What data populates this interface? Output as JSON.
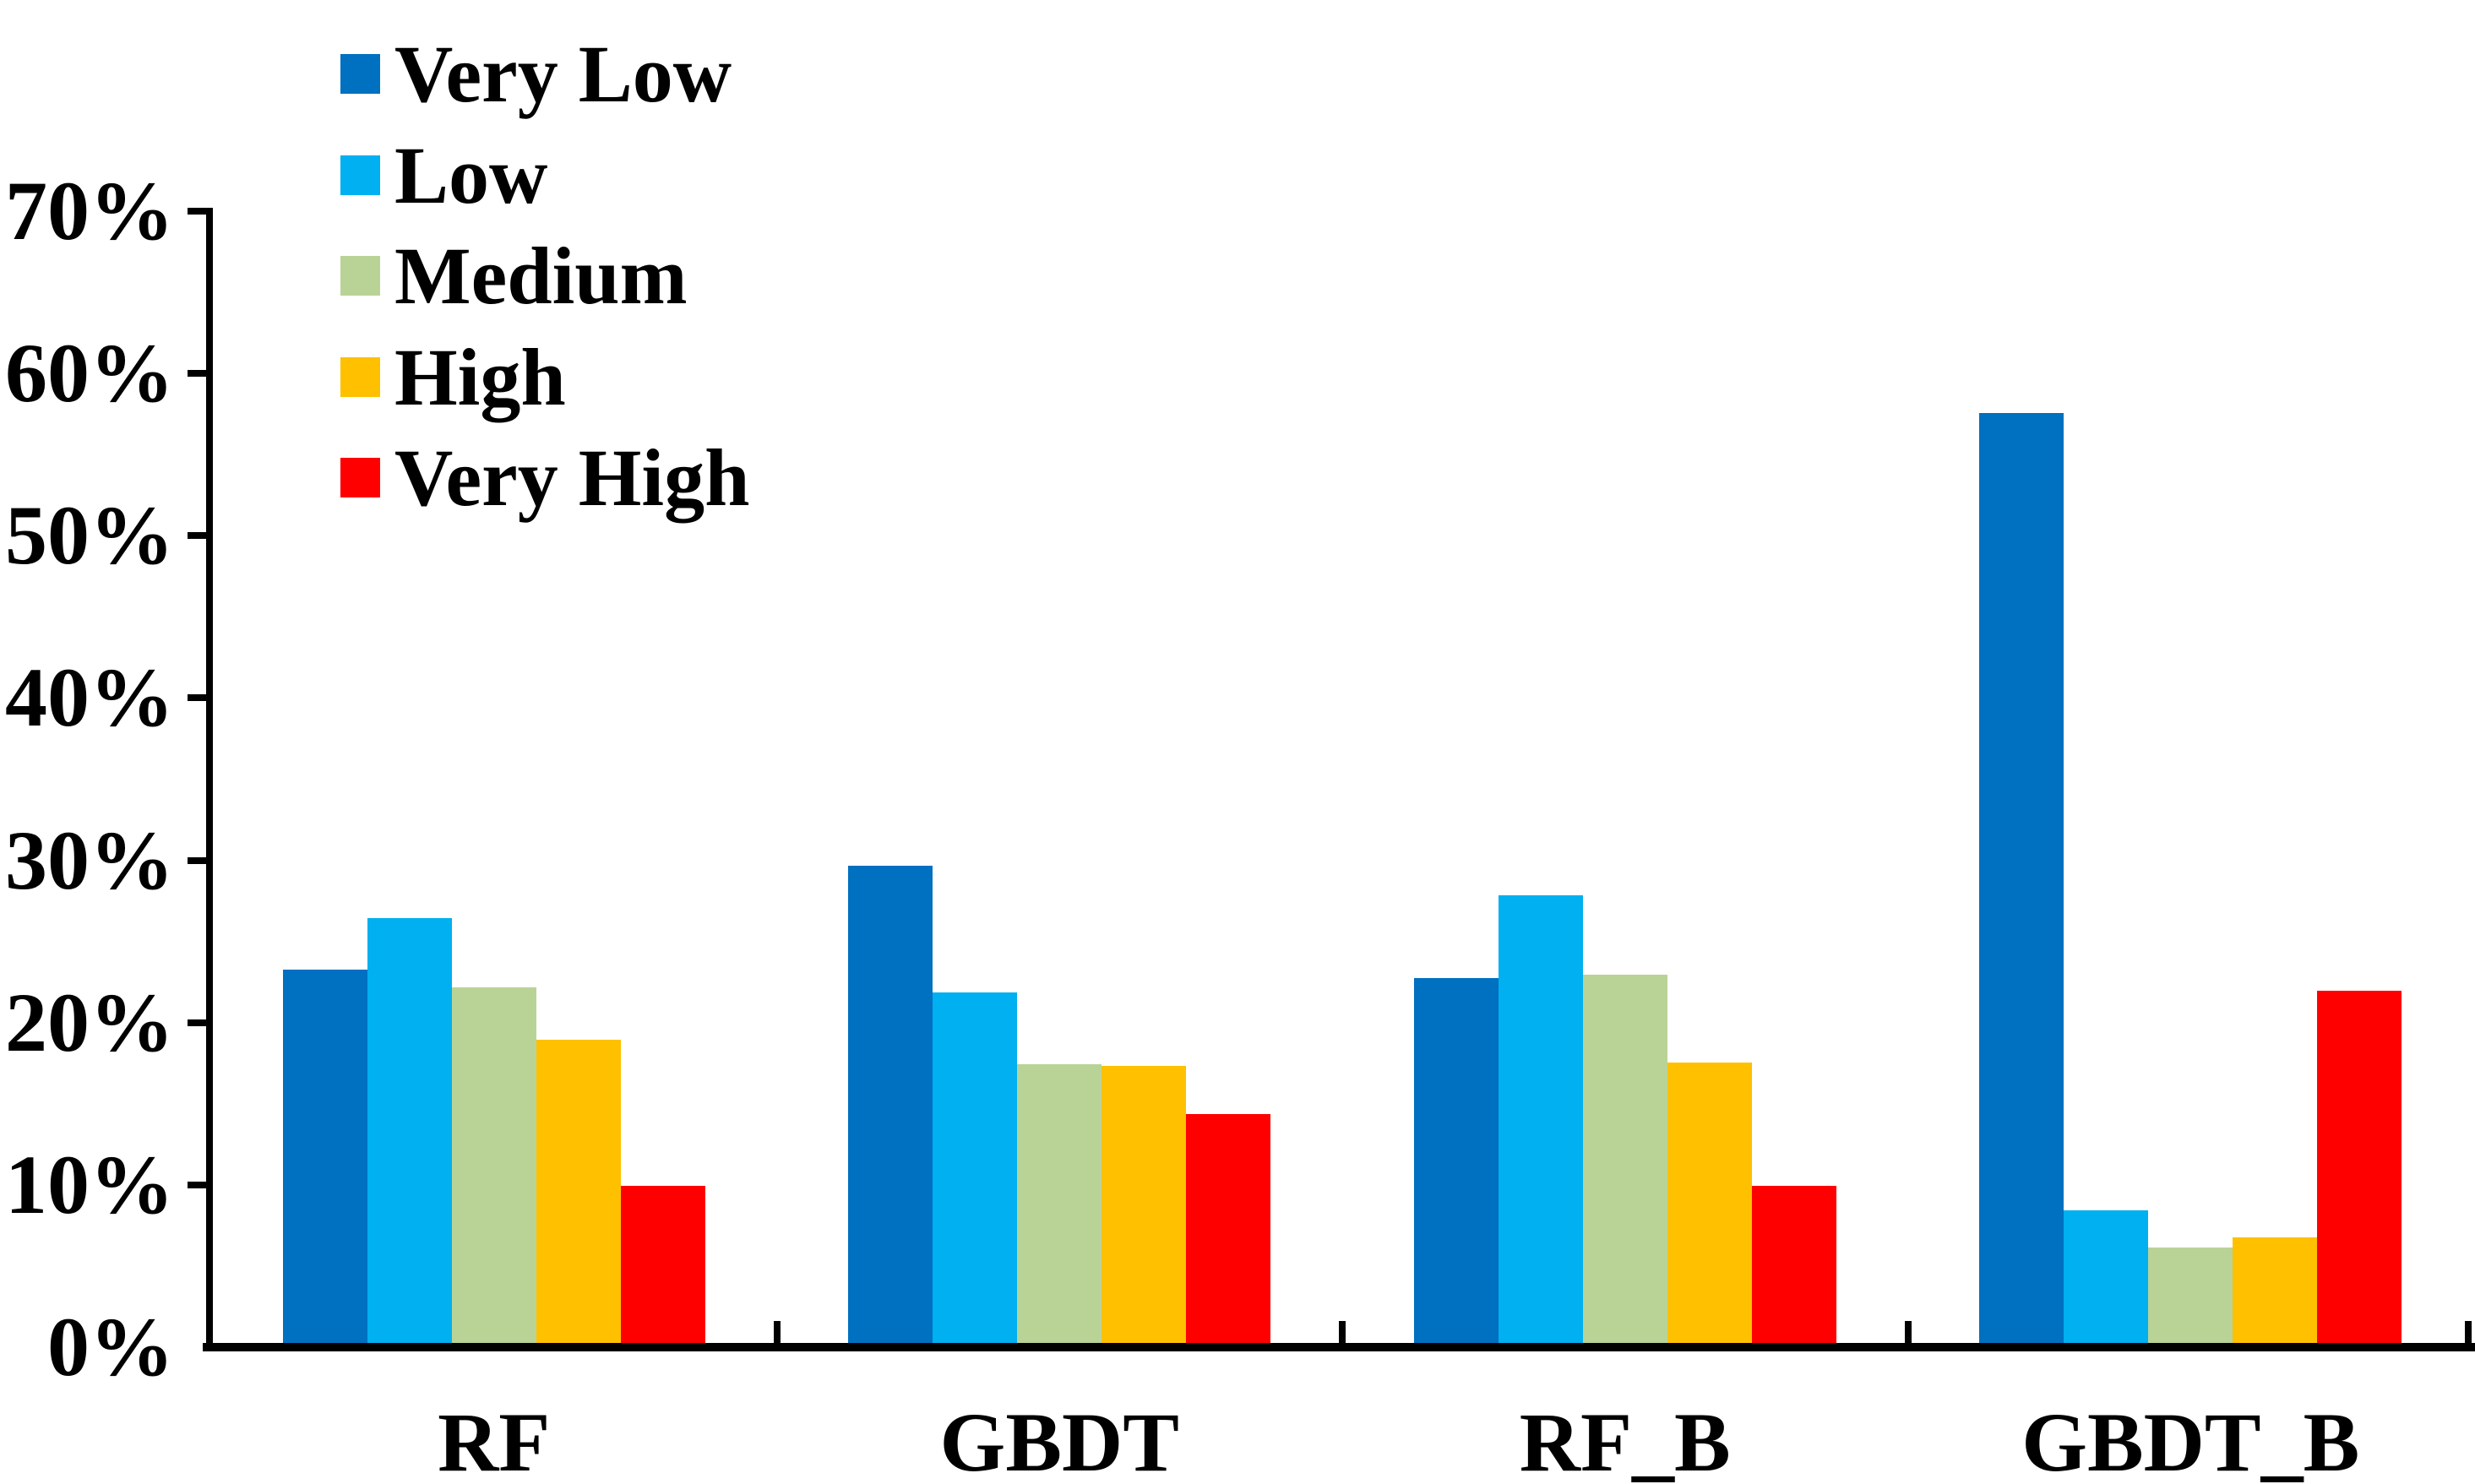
{
  "chart_data": {
    "type": "bar",
    "title": "",
    "xlabel": "",
    "ylabel": "",
    "categories": [
      "RF",
      "GBDT",
      "RF_B",
      "GBDT_B"
    ],
    "series": [
      {
        "name": "Very Low",
        "color": "#0070C0",
        "values": [
          23.1,
          29.5,
          22.6,
          57.4
        ]
      },
      {
        "name": "Low",
        "color": "#00B0F0",
        "values": [
          26.3,
          21.7,
          27.7,
          8.3
        ]
      },
      {
        "name": "Medium",
        "color": "#B9D396",
        "values": [
          22.0,
          17.3,
          22.8,
          6.0
        ]
      },
      {
        "name": "High",
        "color": "#FFC000",
        "values": [
          18.8,
          17.2,
          17.4,
          6.6
        ]
      },
      {
        "name": "Very High",
        "color": "#FF0000",
        "values": [
          9.8,
          14.2,
          9.8,
          21.8
        ]
      }
    ],
    "y_axis": {
      "min": 0,
      "max": 70,
      "step": 10,
      "tick_labels": [
        "0%",
        "10%",
        "20%",
        "30%",
        "40%",
        "50%",
        "60%",
        "70%"
      ],
      "format": "percent"
    },
    "x_axis": {
      "tick_labels": [
        "RF",
        "GBDT",
        "RF_B",
        "GBDT_B"
      ]
    },
    "legend": {
      "position": "top-left",
      "entries": [
        "Very Low",
        "Low",
        "Medium",
        "High",
        "Very High"
      ]
    },
    "grid": false,
    "axis_color": "#000000",
    "background_color": "#FFFFFF"
  }
}
